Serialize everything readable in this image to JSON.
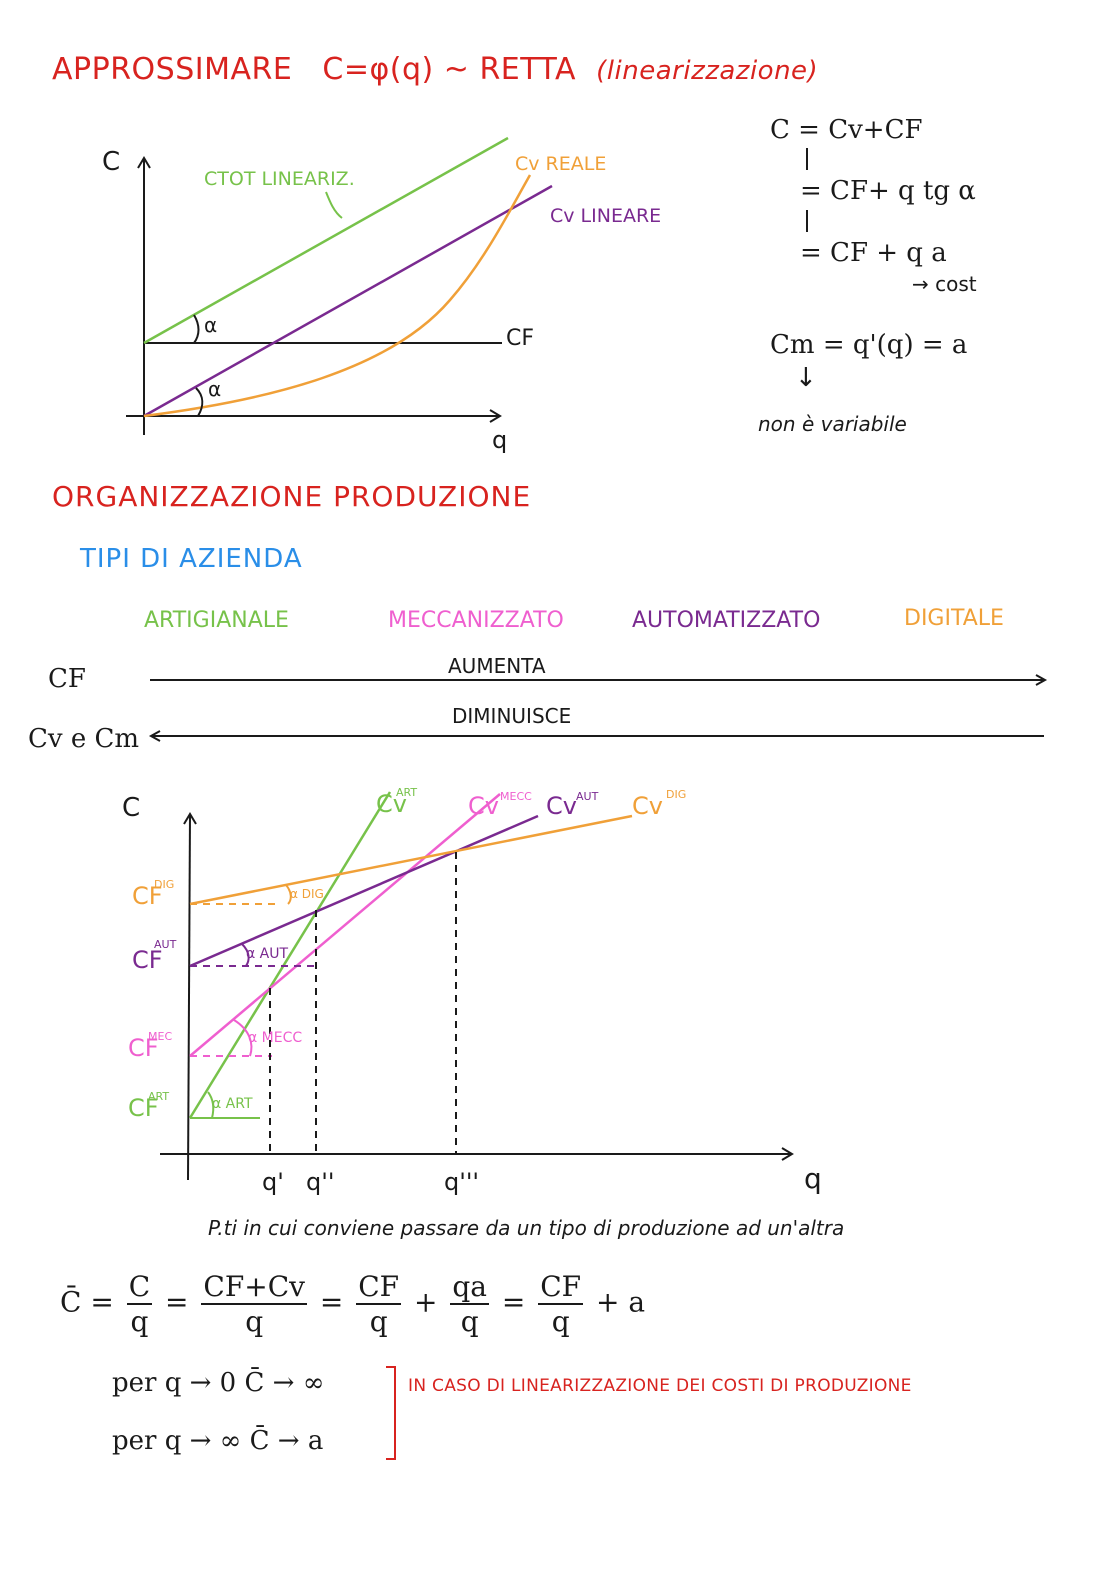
{
  "section1": {
    "title_prefix": "APPROSSIMARE",
    "title_formula": "C=φ(q) ~ RETTA",
    "title_paren": "(linearizzazione)",
    "graph": {
      "y_axis": "C",
      "x_axis": "q",
      "label_ctot": "CTOT LINEARIZ.",
      "label_cv_reale": "Cv REALE",
      "label_cv_lineare": "Cv LINEARE",
      "label_cf": "CF",
      "alpha": "α",
      "colors": {
        "ctot": "#77c24a",
        "cv_reale": "#f0a038",
        "cv_lineare": "#7a2a90",
        "axis": "#1a1a1a"
      }
    },
    "equations": {
      "line1": "C = Cv+CF",
      "line2": "= CF+ q tg α",
      "line3": "= CF + q a",
      "line3_note": "→ cost",
      "cm": "Cm = q'(q) = a",
      "cm_note": "non è variabile"
    }
  },
  "section2": {
    "title": "ORGANIZZAZIONE PRODUZIONE",
    "subtitle": "TIPI DI AZIENDA",
    "types": [
      "ARTIGIANALE",
      "MECCANIZZATO",
      "AUTOMATIZZATO",
      "DIGITALE"
    ],
    "cf_label": "CF",
    "cf_trend": "AUMENTA",
    "cv_label": "Cv e Cm",
    "cv_trend": "DIMINUISCE",
    "graph": {
      "y_axis": "C",
      "x_axis": "q",
      "lines": [
        {
          "label": "Cv",
          "sup": "ART",
          "color": "#77c24a"
        },
        {
          "label": "Cv",
          "sup": "MECC",
          "color": "#ef5fcf"
        },
        {
          "label": "Cv",
          "sup": "AUT",
          "color": "#7a2a90"
        },
        {
          "label": "Cv",
          "sup": "DIG",
          "color": "#f0a038"
        }
      ],
      "cf_labels": [
        {
          "label": "CF",
          "sup": "DIG"
        },
        {
          "label": "CF",
          "sup": "AUT"
        },
        {
          "label": "CF",
          "sup": "MEC"
        },
        {
          "label": "CF",
          "sup": "ART"
        }
      ],
      "angles": [
        "α DIG",
        "α AUT",
        "α MECC",
        "α ART"
      ],
      "q_ticks": [
        "q'",
        "q''",
        "q'''"
      ]
    },
    "note": "P.ti in cui conviene passare da un tipo di produzione ad un'altra"
  },
  "section3": {
    "cbar": "C̄",
    "eq_parts": [
      "C",
      "q",
      "CF+Cv",
      "q",
      "CF",
      "q",
      "qa",
      "q",
      "CF",
      "q",
      "+ a"
    ],
    "limit1": "per q → 0   C̄ → ∞",
    "limit2": "per q → ∞   C̄ → a",
    "limit_note": "IN CASO DI LINEARIZZAZIONE DEI COSTI DI PRODUZIONE"
  }
}
